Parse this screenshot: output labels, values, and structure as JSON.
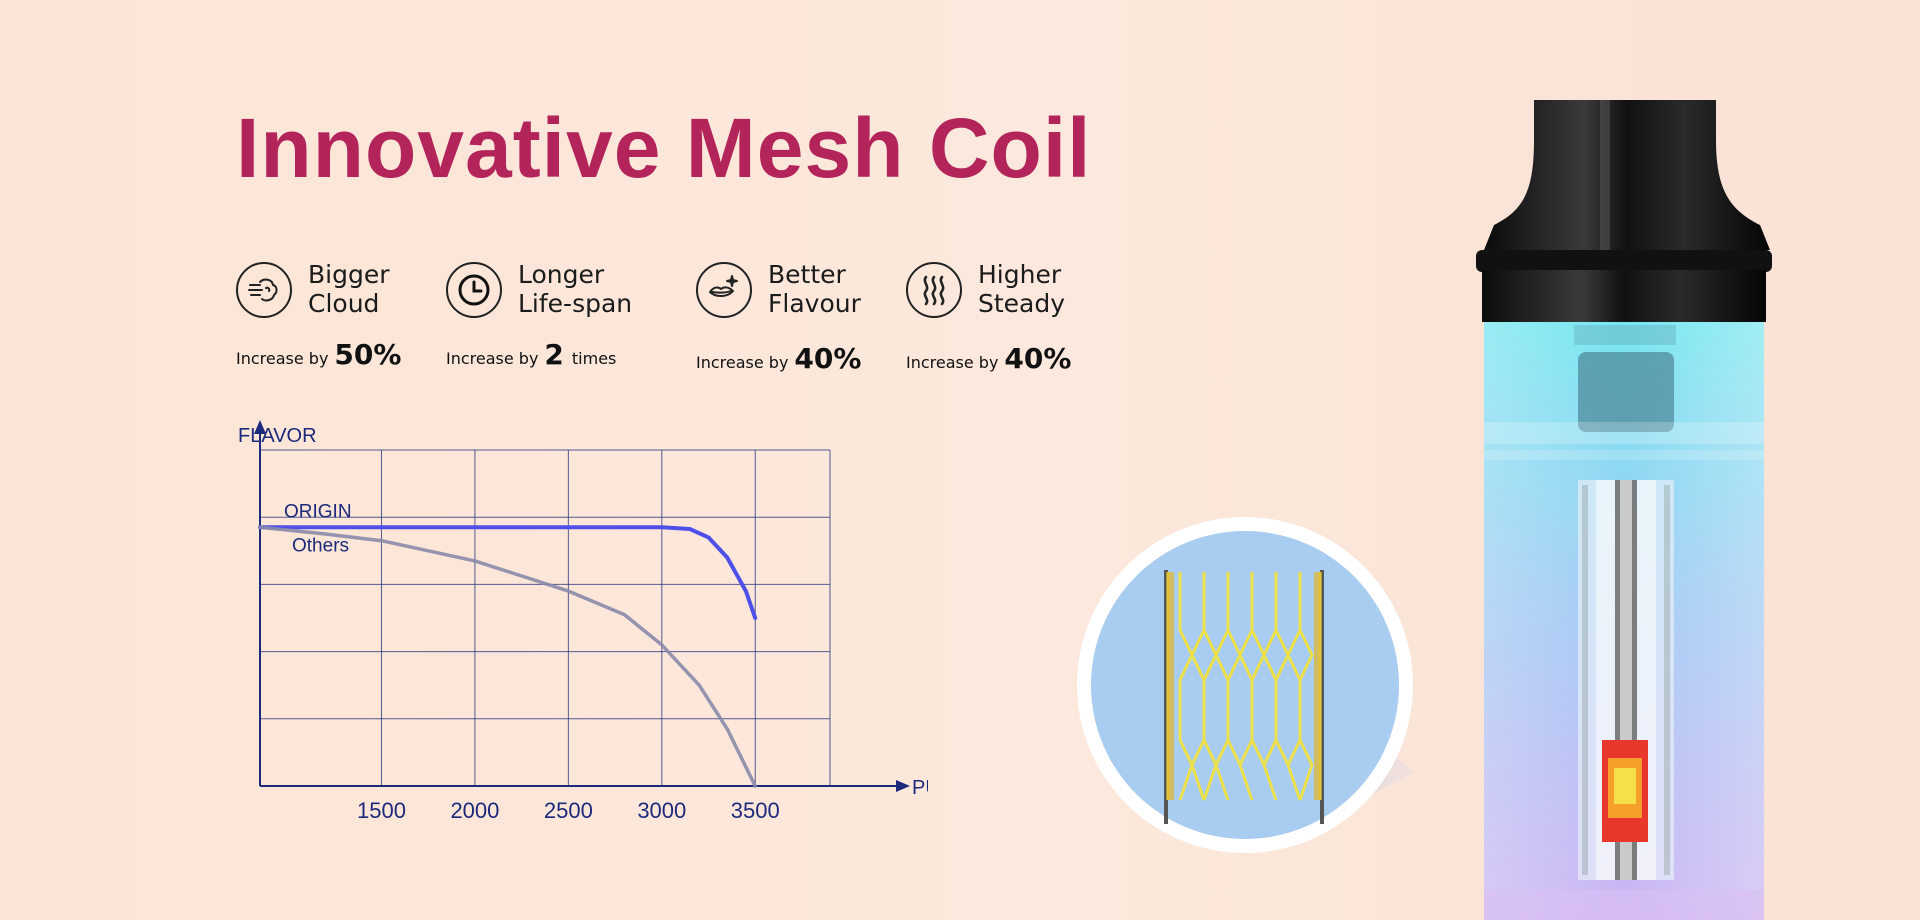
{
  "title": "Innovative Mesh Coil",
  "features": [
    {
      "icon": "cloud-icon",
      "line1": "Bigger",
      "line2": "Cloud",
      "prefix": "Increase by",
      "value": "50%",
      "suffix": ""
    },
    {
      "icon": "clock-icon",
      "line1": "Longer",
      "line2": "Life-span",
      "prefix": "Increase by",
      "value": "2",
      "suffix": "times"
    },
    {
      "icon": "lips-icon",
      "line1": "Better",
      "line2": "Flavour",
      "prefix": "Increase by",
      "value": "40%",
      "suffix": ""
    },
    {
      "icon": "steam-icon",
      "line1": "Higher",
      "line2": "Steady",
      "prefix": "Increase by",
      "value": "40%",
      "suffix": ""
    }
  ],
  "chart_data": {
    "type": "line",
    "title": "",
    "xlabel": "PUFFS",
    "ylabel": "FLAVOR",
    "xlim": [
      850,
      3900
    ],
    "ylim": [
      0,
      100
    ],
    "xticks": [
      1500,
      2000,
      2500,
      3000,
      3500
    ],
    "grid": true,
    "series": [
      {
        "name": "ORIGIN",
        "color": "#4d4fe8",
        "x": [
          850,
          1500,
          2000,
          2500,
          3000,
          3150,
          3250,
          3350,
          3450,
          3500
        ],
        "y": [
          77,
          77,
          77,
          77,
          77,
          76.5,
          74,
          68,
          58,
          50
        ]
      },
      {
        "name": "Others",
        "color": "#8a8aa8",
        "x": [
          850,
          1200,
          1500,
          2000,
          2500,
          2800,
          3000,
          3200,
          3350,
          3500
        ],
        "y": [
          77,
          75,
          73,
          67,
          58,
          51,
          42,
          30,
          17,
          0
        ]
      }
    ]
  },
  "colors": {
    "title": "#b3245a",
    "axis": "#1d2a7c",
    "liquid_top": "#77e6f0",
    "liquid_bottom": "#c7b6f2",
    "magnifier": "#a9cdf0",
    "coil": "#ece14a",
    "heat": "#e8382b"
  }
}
